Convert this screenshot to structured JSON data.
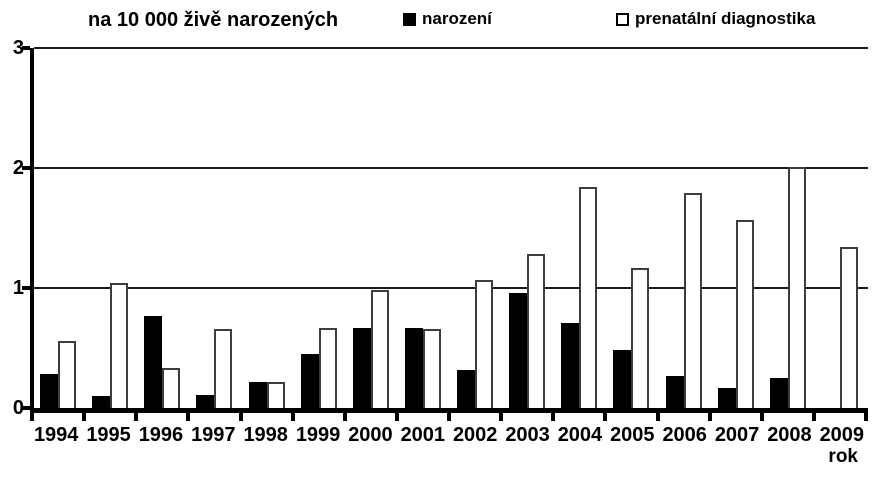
{
  "chart_data": {
    "type": "bar",
    "title": "na 10 000 živě narozených",
    "xlabel": "rok",
    "ylabel": "",
    "ylim": [
      0,
      3
    ],
    "yticks": [
      0,
      1,
      2,
      3
    ],
    "grid": true,
    "legend_position": "top",
    "categories": [
      "1994",
      "1995",
      "1996",
      "1997",
      "1998",
      "1999",
      "2000",
      "2001",
      "2002",
      "2003",
      "2004",
      "2005",
      "2006",
      "2007",
      "2008",
      "2009"
    ],
    "series": [
      {
        "name": "narození",
        "color": "#000000",
        "values": [
          0.28,
          0.1,
          0.77,
          0.11,
          0.22,
          0.45,
          0.67,
          0.67,
          0.32,
          0.96,
          0.71,
          0.48,
          0.27,
          0.17,
          0.25,
          0
        ]
      },
      {
        "name": "prenatální diagnostika",
        "color": "#ffffff",
        "values": [
          0.56,
          1.04,
          0.33,
          0.66,
          0.22,
          0.67,
          0.98,
          0.66,
          1.07,
          1.28,
          1.84,
          1.17,
          1.79,
          1.57,
          2.01,
          1.34
        ]
      }
    ],
    "colors": {
      "axis": "#000000",
      "gridline": "#1a1a1a",
      "background": "#ffffff"
    }
  }
}
